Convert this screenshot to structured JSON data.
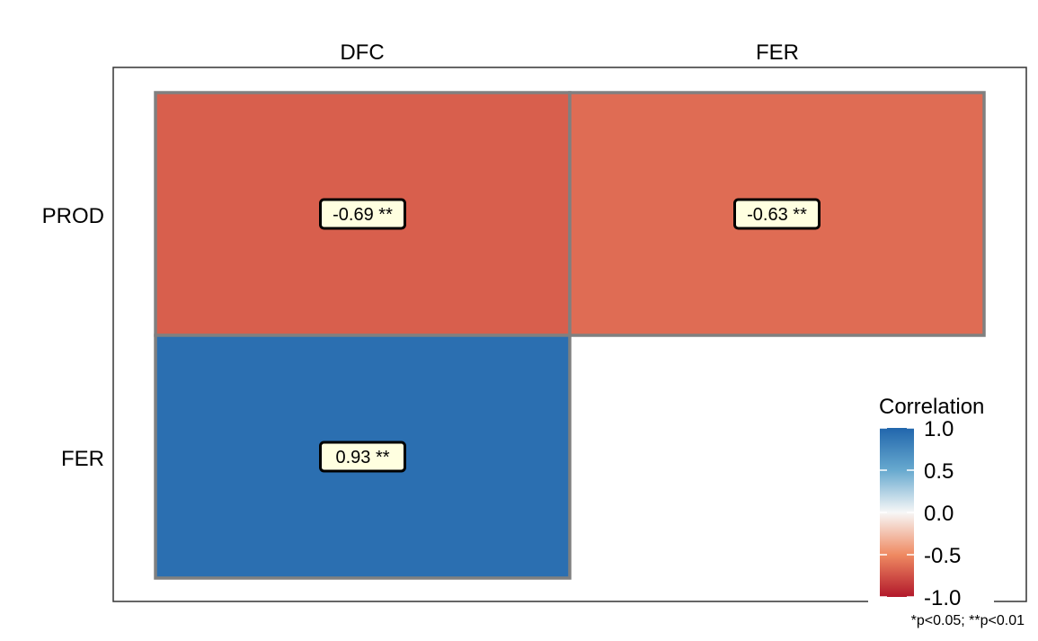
{
  "chart_data": {
    "type": "heatmap",
    "title": "",
    "columns": [
      "DFC",
      "FER"
    ],
    "rows": [
      "PROD",
      "FER"
    ],
    "cells": [
      {
        "row": "PROD",
        "col": "DFC",
        "value": -0.69,
        "label": "-0.69 **"
      },
      {
        "row": "PROD",
        "col": "FER",
        "value": -0.63,
        "label": "-0.63 **"
      },
      {
        "row": "FER",
        "col": "DFC",
        "value": 0.93,
        "label": "0.93 **"
      }
    ],
    "legend": {
      "title": "Correlation",
      "ticks": [
        "1.0",
        "0.5",
        "0.0",
        "-0.5",
        "-1.0"
      ],
      "range": [
        -1.0,
        1.0
      ],
      "placement": "bottom-right"
    },
    "note": "*p<0.05; **p<0.01",
    "colors": {
      "negative_strong": "#b2182b",
      "negative_mid": "#ef8a62",
      "neutral": "#f7f7f7",
      "positive_mid": "#67a9cf",
      "positive_strong": "#2166ac",
      "cell_border": "#808080",
      "label_fill": "#ffffe0"
    }
  }
}
